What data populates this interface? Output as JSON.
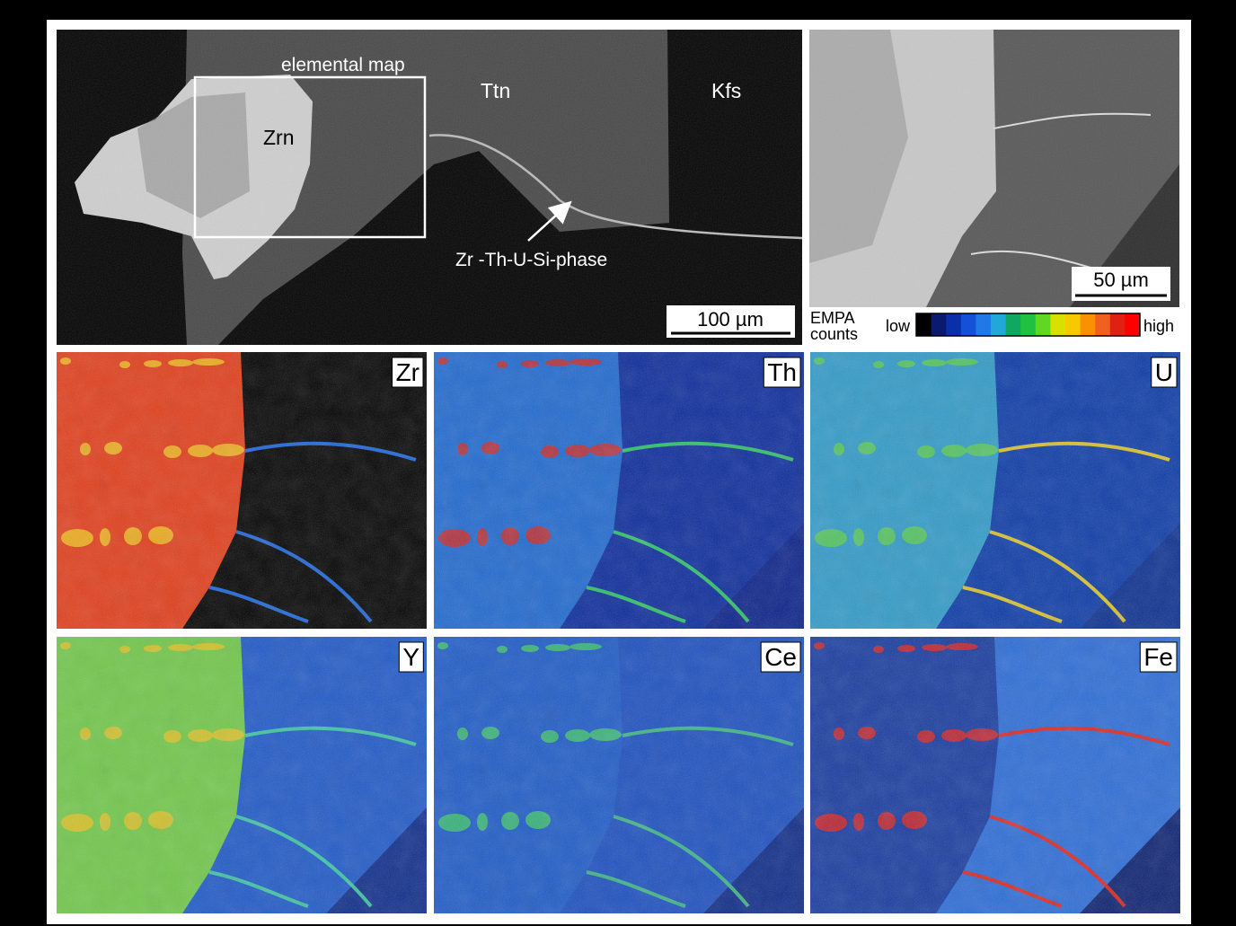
{
  "figure": {
    "bse_overview": {
      "elemental_map_label": "elemental map",
      "labels": [
        "Ttn",
        "Kfs",
        "Zrn"
      ],
      "phase_label": "Zr -Th-U-Si-phase",
      "scale_bar": "100 µm"
    },
    "bse_detail": {
      "scale_bar": "50 µm"
    },
    "legend": {
      "title_lines": [
        "EMPA",
        "counts"
      ],
      "low": "low",
      "high": "high"
    },
    "maps": [
      {
        "element": "Zr"
      },
      {
        "element": "Th"
      },
      {
        "element": "U"
      },
      {
        "element": "Y"
      },
      {
        "element": "Ce"
      },
      {
        "element": "Fe"
      }
    ]
  }
}
